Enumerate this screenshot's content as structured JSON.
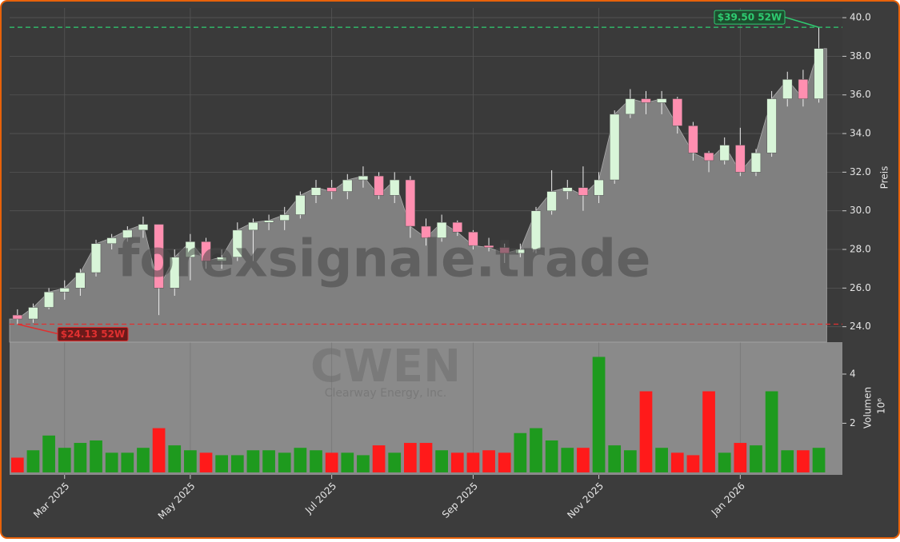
{
  "chart_data": {
    "type": "candlestick",
    "watermark": "forexsignale.trade",
    "symbol": "CWEN",
    "company": "Clearway Energy, Inc.",
    "ylabel": "Preis",
    "y2label": "Volumen",
    "y2_scale_label": "10⁶",
    "categories": [
      null,
      null,
      null,
      "Mar 2025",
      null,
      null,
      null,
      null,
      null,
      null,
      null,
      "May 2025",
      null,
      null,
      null,
      null,
      null,
      null,
      null,
      null,
      "Jul 2025",
      null,
      null,
      null,
      null,
      null,
      null,
      null,
      null,
      "Sep 2025",
      null,
      null,
      null,
      null,
      null,
      null,
      null,
      "Nov 2025",
      null,
      null,
      null,
      null,
      null,
      null,
      null,
      null,
      "Jan 2026",
      null,
      null,
      null,
      null,
      null
    ],
    "open": [
      24.6,
      24.4,
      25.0,
      25.8,
      26.0,
      26.8,
      28.3,
      28.6,
      29.0,
      29.3,
      26.0,
      27.6,
      28.4,
      27.4,
      27.6,
      29.0,
      29.4,
      29.5,
      29.8,
      30.8,
      31.2,
      31.0,
      31.6,
      31.8,
      30.8,
      31.6,
      29.2,
      28.6,
      29.4,
      28.9,
      28.2,
      28.1,
      27.8,
      28.0,
      30.0,
      31.0,
      31.2,
      30.8,
      31.6,
      35.0,
      35.8,
      35.6,
      35.8,
      34.4,
      33.0,
      32.6,
      33.4,
      32.0,
      33.0,
      35.8,
      36.8,
      35.8
    ],
    "high": [
      24.9,
      25.2,
      26.0,
      26.4,
      27.0,
      28.5,
      28.8,
      29.2,
      29.7,
      29.3,
      28.0,
      28.8,
      28.6,
      28.0,
      29.4,
      29.6,
      29.8,
      30.2,
      31.0,
      31.6,
      31.6,
      31.9,
      32.3,
      32.0,
      32.0,
      31.8,
      29.6,
      29.8,
      29.5,
      29.0,
      28.6,
      28.3,
      28.3,
      30.2,
      32.1,
      31.6,
      32.3,
      32.0,
      35.2,
      36.3,
      36.2,
      36.2,
      35.9,
      34.6,
      33.1,
      33.8,
      34.3,
      33.2,
      36.2,
      37.2,
      37.3,
      39.5
    ],
    "low": [
      24.13,
      24.2,
      24.9,
      25.4,
      25.6,
      26.6,
      28.0,
      28.4,
      28.6,
      24.6,
      25.6,
      26.4,
      27.0,
      27.0,
      27.4,
      27.4,
      29.0,
      29.0,
      29.6,
      30.4,
      30.6,
      30.6,
      31.2,
      30.6,
      30.4,
      28.6,
      28.2,
      28.4,
      28.7,
      28.0,
      27.9,
      27.3,
      27.6,
      27.8,
      29.8,
      30.6,
      30.0,
      30.4,
      31.4,
      34.8,
      35.0,
      35.0,
      34.0,
      32.6,
      32.0,
      32.4,
      31.8,
      31.8,
      32.8,
      35.4,
      35.4,
      35.6
    ],
    "close": [
      24.4,
      25.0,
      25.8,
      26.0,
      26.8,
      28.3,
      28.6,
      29.0,
      29.3,
      26.0,
      27.6,
      28.4,
      27.4,
      27.6,
      29.0,
      29.4,
      29.5,
      29.8,
      30.8,
      31.2,
      31.0,
      31.6,
      31.8,
      30.8,
      31.6,
      29.2,
      28.6,
      29.4,
      28.9,
      28.2,
      28.1,
      27.8,
      28.0,
      30.0,
      31.0,
      31.2,
      30.8,
      31.6,
      35.0,
      35.8,
      35.6,
      35.8,
      34.4,
      33.0,
      32.6,
      33.4,
      32.0,
      33.0,
      35.8,
      36.8,
      35.8,
      38.4
    ],
    "volume": [
      0.6,
      0.9,
      1.5,
      1.0,
      1.2,
      1.3,
      0.8,
      0.8,
      1.0,
      1.8,
      1.1,
      0.9,
      0.8,
      0.7,
      0.7,
      0.9,
      0.9,
      0.8,
      1.0,
      0.9,
      0.8,
      0.8,
      0.7,
      1.1,
      0.8,
      1.2,
      1.2,
      0.9,
      0.8,
      0.8,
      0.9,
      0.8,
      1.6,
      1.8,
      1.3,
      1.0,
      1.0,
      4.7,
      1.1,
      0.9,
      3.3,
      1.0,
      0.8,
      0.7,
      3.3,
      0.8,
      1.2,
      1.1,
      3.3,
      0.9,
      0.9,
      1.0
    ],
    "up_color": "#d8f5d8",
    "down_color": "#ff8fb0",
    "area_color": "#808080",
    "volume_up_color": "#1e9a1e",
    "volume_down_color": "#ff1a1a",
    "ylim": [
      23.2,
      40.5
    ],
    "yticks": [
      {
        "value": 24,
        "label": "24.0"
      },
      {
        "value": 26,
        "label": "26.0"
      },
      {
        "value": 28,
        "label": "28.0"
      },
      {
        "value": 30,
        "label": "30.0"
      },
      {
        "value": 32,
        "label": "32.0"
      },
      {
        "value": 34,
        "label": "34.0"
      },
      {
        "value": 36,
        "label": "36.0"
      },
      {
        "value": 38,
        "label": "38.0"
      },
      {
        "value": 40,
        "label": "40.0"
      }
    ],
    "y2lim": [
      -0.1,
      5.3
    ],
    "y2ticks": [
      2,
      4
    ],
    "grid": true,
    "annotations": [
      {
        "text": "$39.50 52W",
        "value": 39.5,
        "color": "#2ecc71"
      },
      {
        "text": "$24.13 52W",
        "value": 24.13,
        "color": "#e03030"
      }
    ]
  }
}
